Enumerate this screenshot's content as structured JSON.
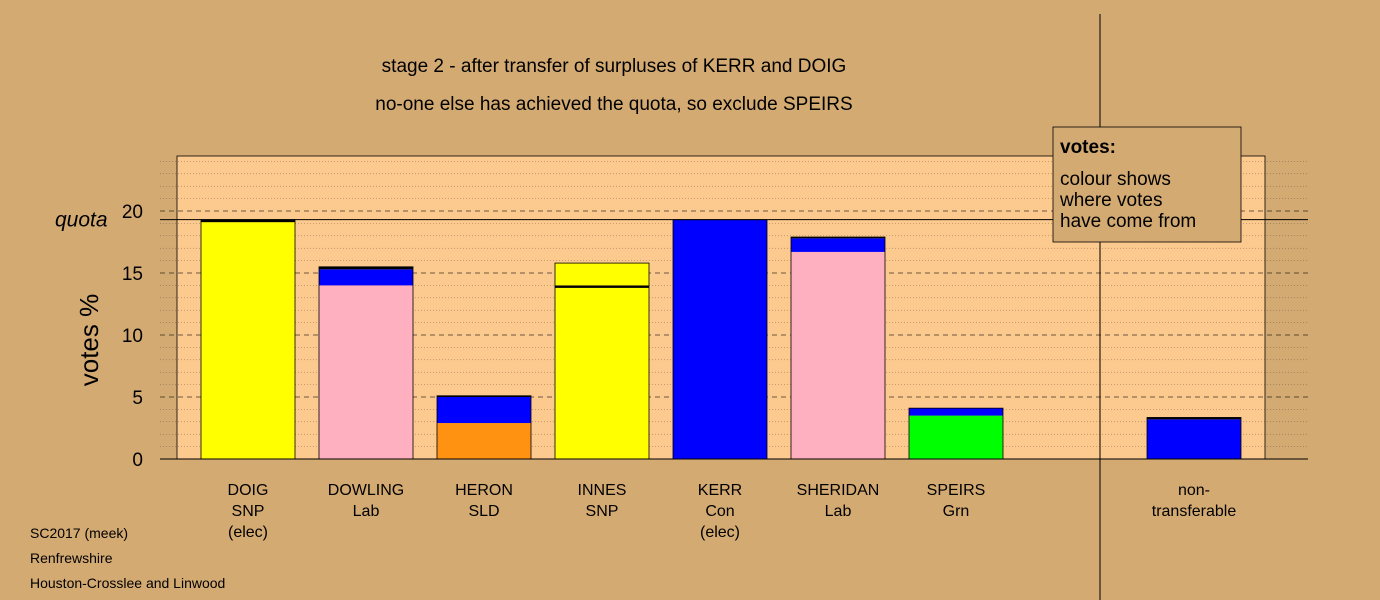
{
  "chart_data": {
    "type": "bar",
    "stacked": true,
    "title": "stage 2 - after transfer of surpluses of KERR and DOIG",
    "subtitle": "no-one else has achieved the quota, so exclude SPEIRS",
    "ylabel": "votes %",
    "ylim": [
      0,
      24
    ],
    "yticks": [
      0,
      5,
      10,
      15,
      20
    ],
    "quota": 19.3,
    "quota_label": "quota",
    "legend": {
      "title": "votes:",
      "lines": [
        "colour shows",
        "where votes",
        "have come from"
      ]
    },
    "colors": {
      "background": "#d4aa73",
      "plot_area": "#fcc98e",
      "SNP": "#ffff00",
      "Lab": "#ffb0c0",
      "SLD": "#ff9210",
      "Con": "#0000ff",
      "Grn": "#00ff00",
      "transfer_line": "#000000"
    },
    "categories": [
      {
        "lines": [
          "DOIG",
          "SNP",
          "(elec)"
        ],
        "segments": [
          {
            "value": 19.1,
            "color": "#ffff00"
          },
          {
            "value": 0.2,
            "color": "#000000"
          }
        ]
      },
      {
        "lines": [
          "DOWLING",
          "Lab"
        ],
        "segments": [
          {
            "value": 14.0,
            "color": "#ffb0c0"
          },
          {
            "value": 1.3,
            "color": "#0000ff"
          },
          {
            "value": 0.2,
            "color": "#000000"
          }
        ]
      },
      {
        "lines": [
          "HERON",
          "SLD"
        ],
        "segments": [
          {
            "value": 2.9,
            "color": "#ff9210"
          },
          {
            "value": 2.1,
            "color": "#0000ff"
          },
          {
            "value": 0.1,
            "color": "#000000"
          }
        ]
      },
      {
        "lines": [
          "INNES",
          "SNP"
        ],
        "segments": [
          {
            "value": 13.8,
            "color": "#ffff00"
          },
          {
            "value": 0.2,
            "color": "#000000"
          },
          {
            "value": 1.8,
            "color": "#ffff00"
          }
        ]
      },
      {
        "lines": [
          "KERR",
          "Con",
          "(elec)"
        ],
        "segments": [
          {
            "value": 19.3,
            "color": "#0000ff"
          }
        ]
      },
      {
        "lines": [
          "SHERIDAN",
          "Lab"
        ],
        "segments": [
          {
            "value": 16.7,
            "color": "#ffb0c0"
          },
          {
            "value": 1.1,
            "color": "#0000ff"
          },
          {
            "value": 0.1,
            "color": "#000000"
          }
        ]
      },
      {
        "lines": [
          "SPEIRS",
          "Grn"
        ],
        "segments": [
          {
            "value": 3.5,
            "color": "#00ff00"
          },
          {
            "value": 0.6,
            "color": "#0000ff"
          }
        ]
      },
      {
        "lines": [
          "non-",
          "transferable"
        ],
        "separate": true,
        "segments": [
          {
            "value": 3.2,
            "color": "#0000ff"
          },
          {
            "value": 0.15,
            "color": "#000000"
          }
        ]
      }
    ]
  },
  "footer": {
    "line1": "SC2017 (meek)",
    "line2": "Renfrewshire",
    "line3": "Houston-Crosslee and Linwood"
  }
}
